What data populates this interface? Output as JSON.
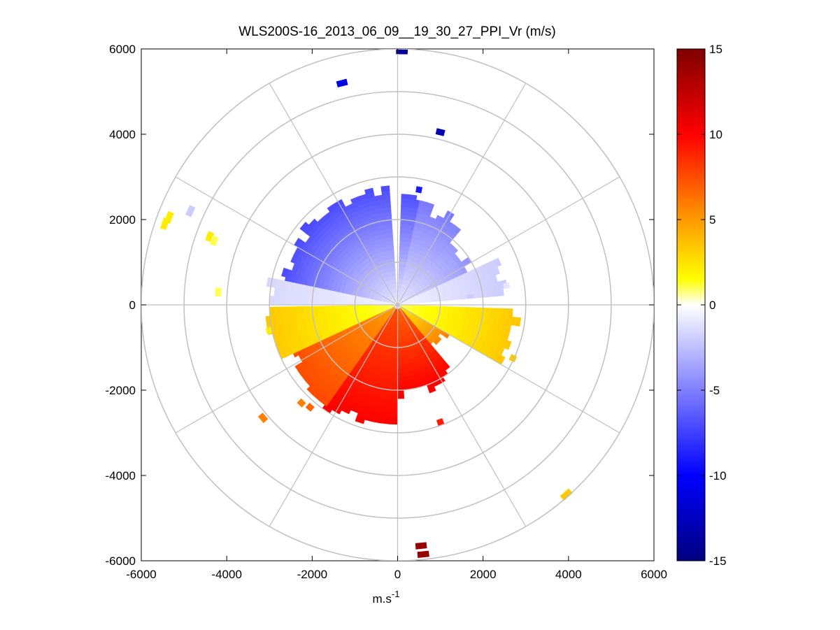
{
  "chart_data": {
    "type": "heatmap",
    "subtype": "polar-ppi-scan",
    "title": "WLS200S-16_2013_06_09__19_30_27_PPI_Vr (m/s)",
    "xlabel": "m.s",
    "xlabel_superscript": "-1",
    "xlim": [
      -6000,
      6000
    ],
    "ylim": [
      -6000,
      6000
    ],
    "xticks": [
      "-6000",
      "-4000",
      "-2000",
      "0",
      "2000",
      "4000",
      "6000"
    ],
    "yticks": [
      "6000",
      "4000",
      "2000",
      "0",
      "-2000",
      "-4000",
      "-6000"
    ],
    "range_rings": [
      1000,
      2000,
      3000,
      4000,
      5000,
      6000
    ],
    "spoke_angles_deg": [
      0,
      30,
      60,
      90,
      120,
      150,
      180,
      210,
      240,
      270,
      300,
      330
    ],
    "colorbar": {
      "min": -15,
      "max": 15,
      "ticks": [
        "15",
        "10",
        "5",
        "0",
        "-5",
        "-10",
        "-15"
      ],
      "colors": [
        "#00007f",
        "#0000ff",
        "#ffffff",
        "#ffff00",
        "#ff8000",
        "#ff0000",
        "#7f0000"
      ]
    },
    "velocity_field_description": "negative (blue) velocities north of the lidar up to ~2800 m range, positive (yellow to red) velocities to the south",
    "sectors": [
      {
        "az_from": 280,
        "az_to": 355,
        "r_min": 0,
        "r_max": 2700,
        "v_near": -1,
        "v_far": -7
      },
      {
        "az_from": 2,
        "az_to": 12,
        "r_min": 0,
        "r_max": 2600,
        "v_near": -1,
        "v_far": -7
      },
      {
        "az_from": 12,
        "az_to": 40,
        "r_min": 0,
        "r_max": 2300,
        "v_near": -1,
        "v_far": -5
      },
      {
        "az_from": 40,
        "az_to": 65,
        "r_min": 0,
        "r_max": 1800,
        "v_near": -1,
        "v_far": -4
      },
      {
        "az_from": 65,
        "az_to": 85,
        "r_min": 0,
        "r_max": 2500,
        "v_near": -0.5,
        "v_far": -2
      },
      {
        "az_from": 270,
        "az_to": 282,
        "r_min": 0,
        "r_max": 2950,
        "v_near": -0.5,
        "v_far": -1.5
      },
      {
        "az_from": 92,
        "az_to": 120,
        "r_min": 0,
        "r_max": 2700,
        "v_near": 1,
        "v_far": 3
      },
      {
        "az_from": 120,
        "az_to": 140,
        "r_min": 0,
        "r_max": 1300,
        "v_near": 2,
        "v_far": 5
      },
      {
        "az_from": 140,
        "az_to": 178,
        "r_min": 0,
        "r_max": 2000,
        "v_near": 6,
        "v_far": 10
      },
      {
        "az_from": 180,
        "az_to": 215,
        "r_min": 0,
        "r_max": 2800,
        "v_near": 7,
        "v_far": 10
      },
      {
        "az_from": 215,
        "az_to": 245,
        "r_min": 0,
        "r_max": 2700,
        "v_near": 4,
        "v_far": 7
      },
      {
        "az_from": 245,
        "az_to": 268,
        "r_min": 0,
        "r_max": 3000,
        "v_near": 1,
        "v_far": 3
      }
    ],
    "scatter_gates": [
      {
        "x": 100,
        "y": 5950,
        "v": -14
      },
      {
        "x": -1300,
        "y": 5200,
        "v": -11
      },
      {
        "x": 1000,
        "y": 4050,
        "v": -13
      },
      {
        "x": 500,
        "y": 2700,
        "v": -9
      },
      {
        "x": -4850,
        "y": 2200,
        "v": -2
      },
      {
        "x": -4400,
        "y": 1600,
        "v": 2
      },
      {
        "x": -4300,
        "y": 1500,
        "v": 1
      },
      {
        "x": -4200,
        "y": 300,
        "v": 1
      },
      {
        "x": -5350,
        "y": 2050,
        "v": 2
      },
      {
        "x": -5450,
        "y": 1900,
        "v": 2
      },
      {
        "x": -3150,
        "y": -2650,
        "v": 5
      },
      {
        "x": -2050,
        "y": -2400,
        "v": 6
      },
      {
        "x": -2250,
        "y": -2300,
        "v": 5
      },
      {
        "x": 3950,
        "y": -4450,
        "v": 3
      },
      {
        "x": 550,
        "y": -5650,
        "v": 14
      },
      {
        "x": 600,
        "y": -5850,
        "v": 14
      },
      {
        "x": 1000,
        "y": -2750,
        "v": 9
      },
      {
        "x": 1700,
        "y": 200,
        "v": -2
      },
      {
        "x": 2550,
        "y": 450,
        "v": -1
      },
      {
        "x": 2700,
        "y": -1250,
        "v": 3
      },
      {
        "x": -3000,
        "y": -600,
        "v": 2
      }
    ]
  }
}
